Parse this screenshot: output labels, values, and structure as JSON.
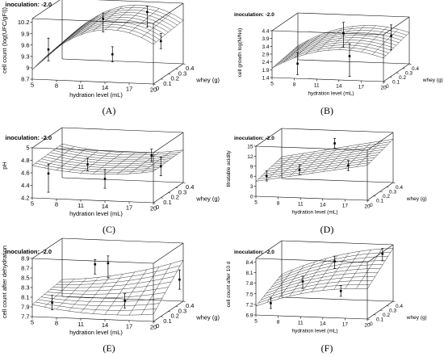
{
  "figure": {
    "panel_labels": [
      "(A)",
      "(B)",
      "(C)",
      "(D)",
      "(E)",
      "(F)"
    ]
  },
  "chart_data": [
    {
      "type": "surface3d",
      "panel_label": "(A)",
      "title": "inoculation: -2.0",
      "xlabel": "hydration level (mL)",
      "ylabel": "whey (g)",
      "zlabel": "cell count (log(UFC/gFI))",
      "x_ticks": [
        "5",
        "8",
        "11",
        "14",
        "17",
        "20"
      ],
      "y_ticks": [
        "0",
        "0.1",
        "0.2",
        "0.3",
        "0.4"
      ],
      "z_ticks": [
        "8.7",
        "9",
        "9.3",
        "9.6",
        "9.9",
        "10.2"
      ],
      "xlim": [
        5,
        20
      ],
      "ylim": [
        0,
        0.4
      ],
      "zlim": [
        8.7,
        10.3
      ],
      "surface": {
        "corners": [
          8.95,
          9.75,
          9.1,
          9.85
        ],
        "curvature": 0.85
      },
      "points": [
        {
          "x": 7,
          "y": 0.0,
          "z": 9.5,
          "zlo": 9.2,
          "zhi": 9.8
        },
        {
          "x": 11,
          "y": 0.3,
          "z": 9.95,
          "zlo": 9.6,
          "zhi": 10.1
        },
        {
          "x": 14,
          "y": 0.1,
          "z": 9.3,
          "zlo": 9.1,
          "zhi": 9.5
        },
        {
          "x": 16,
          "y": 0.35,
          "z": 10.1,
          "zlo": 9.7,
          "zhi": 10.25
        },
        {
          "x": 20,
          "y": 0.1,
          "z": 9.7,
          "zlo": 9.5,
          "zhi": 9.9
        }
      ]
    },
    {
      "type": "surface3d",
      "panel_label": "(B)",
      "title": "inoculation: -2.0",
      "xlabel": "hydration level (mL)",
      "ylabel": "whey (g)",
      "zlabel": "cell growth log(N/No)",
      "x_ticks": [
        "5",
        "8",
        "11",
        "14",
        "17",
        "20"
      ],
      "y_ticks": [
        "0",
        "0.1",
        "0.2",
        "0.3",
        "0.4"
      ],
      "z_ticks": [
        "1.4",
        "1.9",
        "2.4",
        "2.9",
        "3.4",
        "3.9",
        "4.4"
      ],
      "xlim": [
        5,
        20
      ],
      "ylim": [
        0,
        0.4
      ],
      "zlim": [
        1.4,
        4.4
      ],
      "surface": {
        "corners": [
          2.0,
          2.9,
          2.3,
          3.4
        ],
        "curvature": 0.55
      },
      "points": [
        {
          "x": 8,
          "y": 0.05,
          "z": 2.2,
          "zlo": 1.5,
          "zhi": 2.9
        },
        {
          "x": 12,
          "y": 0.3,
          "z": 3.5,
          "zlo": 2.6,
          "zhi": 4.2
        },
        {
          "x": 15,
          "y": 0.05,
          "z": 2.8,
          "zlo": 1.5,
          "zhi": 3.6
        },
        {
          "x": 18,
          "y": 0.35,
          "z": 3.3,
          "zlo": 2.4,
          "zhi": 4.0
        }
      ]
    },
    {
      "type": "surface3d",
      "panel_label": "(C)",
      "title": "inoculation: -2.0",
      "xlabel": "hydration level (mL)",
      "ylabel": "whey (g)",
      "zlabel": "pH",
      "x_ticks": [
        "5",
        "8",
        "11",
        "14",
        "17",
        "20"
      ],
      "y_ticks": [
        "0",
        "0.1",
        "0.2",
        "0.3",
        "0.4"
      ],
      "z_ticks": [
        "4.2",
        "4.4",
        "4.6",
        "4.8",
        "5"
      ],
      "xlim": [
        5,
        20
      ],
      "ylim": [
        0,
        0.4
      ],
      "zlim": [
        4.2,
        5.0
      ],
      "surface": {
        "corners": [
          4.72,
          4.7,
          4.74,
          4.72
        ],
        "curvature": -0.22
      },
      "points": [
        {
          "x": 7,
          "y": 0.0,
          "z": 4.6,
          "zlo": 4.3,
          "zhi": 4.75
        },
        {
          "x": 10,
          "y": 0.2,
          "z": 4.6,
          "zlo": 4.5,
          "zhi": 4.7
        },
        {
          "x": 14,
          "y": 0.0,
          "z": 4.55,
          "zlo": 4.4,
          "zhi": 4.7
        },
        {
          "x": 17,
          "y": 0.3,
          "z": 4.7,
          "zlo": 4.6,
          "zhi": 4.8
        },
        {
          "x": 20,
          "y": 0.1,
          "z": 4.7,
          "zlo": 4.55,
          "zhi": 4.85
        }
      ]
    },
    {
      "type": "surface3d",
      "panel_label": "(D)",
      "title": "inoculation: -2.0",
      "xlabel": "hydration level (mL)",
      "ylabel": "whey (g)",
      "zlabel": "titratable acidity",
      "x_ticks": [
        "5",
        "8",
        "11",
        "14",
        "17",
        "20"
      ],
      "y_ticks": [
        "0",
        "0.1",
        "0.2",
        "0.3",
        "0.4"
      ],
      "z_ticks": [
        "0",
        "3",
        "6",
        "9",
        "12",
        "15"
      ],
      "xlim": [
        5,
        20
      ],
      "ylim": [
        0,
        0.4
      ],
      "zlim": [
        0,
        15
      ],
      "surface": {
        "corners": [
          4.5,
          10.5,
          6.5,
          13.0
        ],
        "curvature": 0.0
      },
      "points": [
        {
          "x": 6,
          "y": 0.05,
          "z": 5.5,
          "zlo": 4,
          "zhi": 7
        },
        {
          "x": 10,
          "y": 0.1,
          "z": 7,
          "zlo": 5.5,
          "zhi": 8.5
        },
        {
          "x": 13,
          "y": 0.3,
          "z": 12.5,
          "zlo": 11,
          "zhi": 14
        },
        {
          "x": 17,
          "y": 0.05,
          "z": 9.5,
          "zlo": 8,
          "zhi": 11
        }
      ]
    },
    {
      "type": "surface3d",
      "panel_label": "(E)",
      "title": "inoculation: -2.0",
      "xlabel": "hydration level (mL)",
      "ylabel": "whey (g)",
      "zlabel": "cell count after dehydration",
      "x_ticks": [
        "5",
        "8",
        "11",
        "14",
        "17",
        "20"
      ],
      "y_ticks": [
        "0",
        "0.1",
        "0.2",
        "0.3",
        "0.4"
      ],
      "z_ticks": [
        "7.7",
        "7.9",
        "8.1",
        "8.3",
        "8.5",
        "8.7",
        "8.9"
      ],
      "xlim": [
        5,
        20
      ],
      "ylim": [
        0,
        0.4
      ],
      "zlim": [
        7.7,
        8.9
      ],
      "surface": {
        "corners": [
          7.95,
          7.85,
          8.05,
          8.55
        ],
        "curvature": -0.15
      },
      "points": [
        {
          "x": 7,
          "y": 0.05,
          "z": 7.95,
          "zlo": 7.8,
          "zhi": 8.1
        },
        {
          "x": 10,
          "y": 0.3,
          "z": 8.5,
          "zlo": 8.3,
          "zhi": 8.6
        },
        {
          "x": 13,
          "y": 0.15,
          "z": 8.7,
          "zlo": 8.4,
          "zhi": 8.85
        },
        {
          "x": 16,
          "y": 0.05,
          "z": 8.05,
          "zlo": 7.9,
          "zhi": 8.2
        },
        {
          "x": 20,
          "y": 0.35,
          "z": 8.2,
          "zlo": 8.0,
          "zhi": 8.4
        }
      ]
    },
    {
      "type": "surface3d",
      "panel_label": "(F)",
      "title": "inoculation: -2.0",
      "xlabel": "hydration level (mL)",
      "ylabel": "whey (g)",
      "zlabel": "cell count after 10 d",
      "x_ticks": [
        "5",
        "8",
        "11",
        "14",
        "17",
        "20"
      ],
      "y_ticks": [
        "0",
        "0.1",
        "0.2",
        "0.3",
        "0.4"
      ],
      "z_ticks": [
        "6.9",
        "7.2",
        "7.5",
        "7.8",
        "8.1",
        "8.4"
      ],
      "xlim": [
        5,
        20
      ],
      "ylim": [
        0,
        0.4
      ],
      "zlim": [
        6.9,
        8.5
      ],
      "surface": {
        "corners": [
          7.15,
          7.75,
          7.55,
          8.4
        ],
        "curvature": 0.2
      },
      "points": [
        {
          "x": 7,
          "y": 0.0,
          "z": 7.25,
          "zlo": 7.1,
          "zhi": 7.4
        },
        {
          "x": 10,
          "y": 0.15,
          "z": 7.7,
          "zlo": 7.5,
          "zhi": 7.85
        },
        {
          "x": 13,
          "y": 0.3,
          "z": 8.1,
          "zlo": 7.9,
          "zhi": 8.25
        },
        {
          "x": 16,
          "y": 0.05,
          "z": 7.6,
          "zlo": 7.45,
          "zhi": 7.75
        },
        {
          "x": 19,
          "y": 0.35,
          "z": 8.3,
          "zlo": 8.1,
          "zhi": 8.45
        }
      ]
    }
  ]
}
